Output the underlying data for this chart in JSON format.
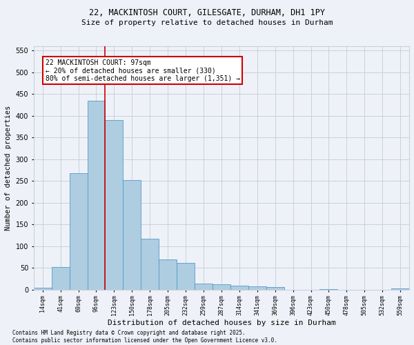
{
  "title_line1": "22, MACKINTOSH COURT, GILESGATE, DURHAM, DH1 1PY",
  "title_line2": "Size of property relative to detached houses in Durham",
  "xlabel": "Distribution of detached houses by size in Durham",
  "ylabel": "Number of detached properties",
  "footnote": "Contains HM Land Registry data © Crown copyright and database right 2025.\nContains public sector information licensed under the Open Government Licence v3.0.",
  "bar_labels": [
    "14sqm",
    "41sqm",
    "69sqm",
    "96sqm",
    "123sqm",
    "150sqm",
    "178sqm",
    "205sqm",
    "232sqm",
    "259sqm",
    "287sqm",
    "314sqm",
    "341sqm",
    "369sqm",
    "396sqm",
    "423sqm",
    "450sqm",
    "478sqm",
    "505sqm",
    "532sqm",
    "559sqm"
  ],
  "bar_values": [
    4,
    52,
    268,
    435,
    390,
    252,
    117,
    70,
    62,
    14,
    13,
    10,
    8,
    6,
    0,
    0,
    1,
    0,
    0,
    0,
    3
  ],
  "bar_color": "#aecde1",
  "bar_edgecolor": "#5599c8",
  "ylim": [
    0,
    560
  ],
  "yticks": [
    0,
    50,
    100,
    150,
    200,
    250,
    300,
    350,
    400,
    450,
    500,
    550
  ],
  "property_line_x": 3.5,
  "annotation_line1": "22 MACKINTOSH COURT: 97sqm",
  "annotation_line2": "← 20% of detached houses are smaller (330)",
  "annotation_line3": "80% of semi-detached houses are larger (1,351) →",
  "annotation_box_facecolor": "#ffffff",
  "annotation_box_edgecolor": "#cc0000",
  "red_line_color": "#cc0000",
  "background_color": "#eef2f8",
  "grid_color": "#c8d0dc",
  "title_fontsize": 8.5,
  "subtitle_fontsize": 8.0,
  "xlabel_fontsize": 8.0,
  "ylabel_fontsize": 7.5,
  "xtick_fontsize": 6.0,
  "ytick_fontsize": 7.0,
  "footnote_fontsize": 5.5,
  "annotation_fontsize": 7.0
}
